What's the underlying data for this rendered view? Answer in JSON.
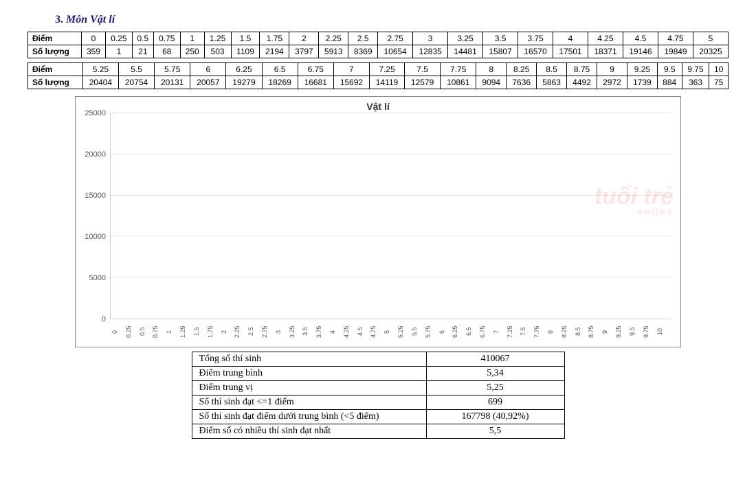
{
  "heading_num": "3.",
  "heading_text": "Môn Vật lí",
  "table_row_label_score": "Điểm",
  "table_row_label_count": "Số lượng",
  "scores": [
    "0",
    "0.25",
    "0.5",
    "0.75",
    "1",
    "1.25",
    "1.5",
    "1.75",
    "2",
    "2.25",
    "2.5",
    "2.75",
    "3",
    "3.25",
    "3.5",
    "3.75",
    "4",
    "4.25",
    "4.5",
    "4.75",
    "5",
    "5.25",
    "5.5",
    "5.75",
    "6",
    "6.25",
    "6.5",
    "6.75",
    "7",
    "7.25",
    "7.5",
    "7.75",
    "8",
    "8.25",
    "8.5",
    "8.75",
    "9",
    "9.25",
    "9.5",
    "9.75",
    "10"
  ],
  "counts": [
    359,
    1,
    21,
    68,
    250,
    503,
    1109,
    2194,
    3797,
    5913,
    8369,
    10654,
    12835,
    14481,
    15807,
    16570,
    17501,
    18371,
    19146,
    19849,
    20325,
    20404,
    20754,
    20131,
    20057,
    19279,
    18269,
    16681,
    15692,
    14119,
    12579,
    10861,
    9094,
    7636,
    5863,
    4492,
    2972,
    1739,
    884,
    363,
    75
  ],
  "chart": {
    "type": "bar",
    "title": "Vật lí",
    "ylim": [
      0,
      25000
    ],
    "ytick_step": 5000,
    "bar_color": "#5b9bd5",
    "grid_color": "#e3e3e3",
    "axis_color": "#cccccc",
    "background_color": "#ffffff",
    "title_fontsize": 14,
    "tick_fontsize": 10
  },
  "watermark": {
    "main": "tuổi trẻ",
    "sub": "online"
  },
  "stats": [
    {
      "label": "Tổng số thí sinh",
      "value": "410067"
    },
    {
      "label": "Điểm trung bình",
      "value": "5,34"
    },
    {
      "label": "Điểm trung vị",
      "value": "5,25"
    },
    {
      "label": "Số thí sinh đạt <=1 điểm",
      "value": "699"
    },
    {
      "label": "Số thí sinh đạt điểm dưới trung bình (<5 điểm)",
      "value": "167798 (40,92%)"
    },
    {
      "label": "Điểm số có nhiều thí sinh đạt nhất",
      "value": "5,5"
    }
  ]
}
